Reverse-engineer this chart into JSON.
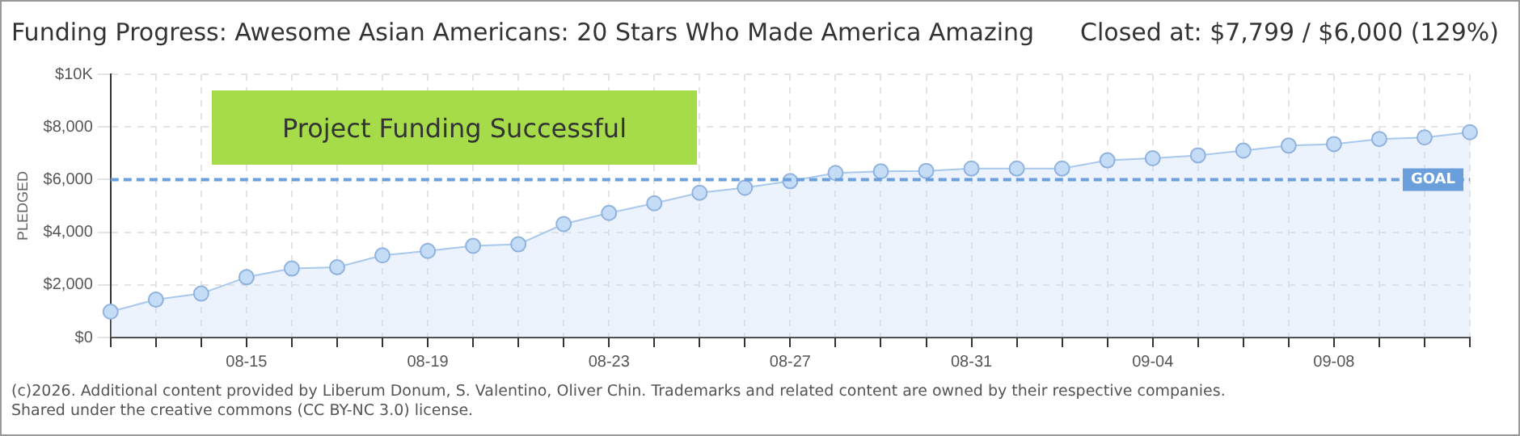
{
  "chart_data": {
    "type": "area",
    "title": "Funding Progress: Awesome Asian Americans: 20 Stars Who Made America Amazing",
    "subtitle": "Closed at: $7,799 / $6,000 (129%)",
    "ylabel": "PLEDGED",
    "categories": [
      null,
      null,
      null,
      "08-15",
      null,
      null,
      null,
      "08-19",
      null,
      null,
      null,
      "08-23",
      null,
      null,
      null,
      "08-27",
      null,
      null,
      null,
      "08-31",
      null,
      null,
      null,
      "09-04",
      null,
      null,
      null,
      "09-08",
      null,
      null,
      null
    ],
    "series": [
      {
        "color": "#a8c8ee",
        "values": [
          980,
          1440,
          1670,
          2290,
          2620,
          2670,
          3120,
          3290,
          3480,
          3540,
          4310,
          4730,
          5100,
          5500,
          5690,
          5940,
          6250,
          6310,
          6330,
          6420,
          6420,
          6420,
          6730,
          6810,
          6920,
          7100,
          7290,
          7350,
          7540,
          7600,
          7799
        ]
      }
    ],
    "ylim": [
      0,
      10000
    ],
    "yticks": [
      {
        "value": 0,
        "label": "$0"
      },
      {
        "value": 2000,
        "label": "$2,000"
      },
      {
        "value": 4000,
        "label": "$4,000"
      },
      {
        "value": 6000,
        "label": "$6,000"
      },
      {
        "value": 8000,
        "label": "$8,000"
      },
      {
        "value": 10000,
        "label": "$10K"
      }
    ],
    "ref_lines": [
      {
        "axis": "y",
        "value": 6000,
        "label": "GOAL",
        "color": "#6a9fdc",
        "line_style": "dashed"
      }
    ],
    "annotations": [
      "Project Funding Successful",
      "(c)2026. Additional content provided by Liberum Donum, S. Valentino, Oliver Chin. Trademarks and related content are owned by their respective companies.",
      "Shared under the creative commons (CC BY-NC 3.0) license."
    ],
    "grid": true,
    "legend": false,
    "marker": "circle",
    "line_style": "solid"
  }
}
